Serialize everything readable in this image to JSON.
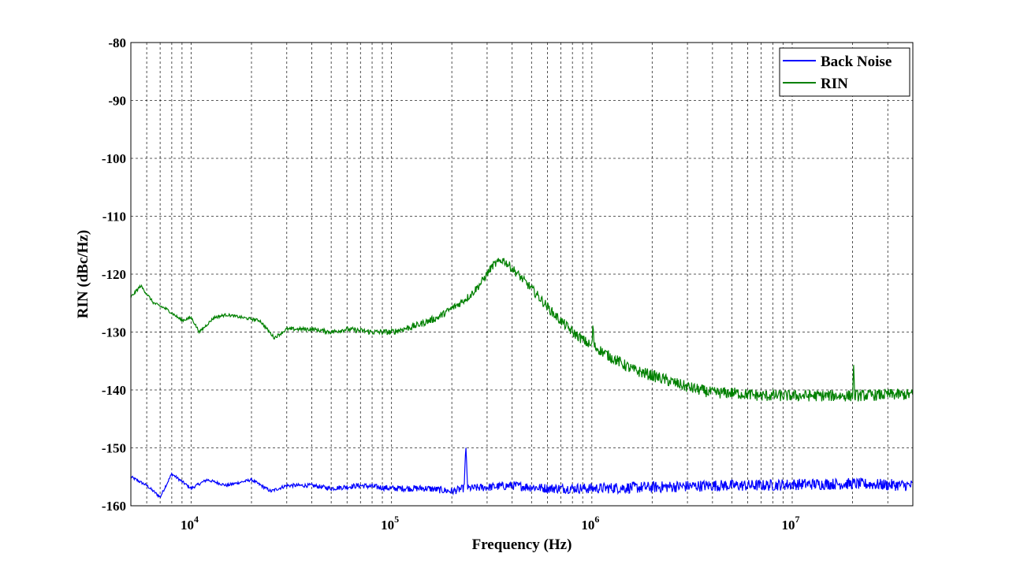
{
  "chart_data": {
    "type": "line",
    "title": "",
    "xlabel": "Frequency (Hz)",
    "ylabel": "RIN (dBc/Hz)",
    "xscale": "log",
    "xlim": [
      5000,
      40000000
    ],
    "ylim": [
      -160,
      -80
    ],
    "grid": true,
    "legend": "top-right",
    "y_ticks": [
      -80,
      -90,
      -100,
      -110,
      -120,
      -130,
      -140,
      -150,
      -160
    ],
    "x_ticks": [
      {
        "value": 10000,
        "base": "10",
        "exp": "4"
      },
      {
        "value": 100000,
        "base": "10",
        "exp": "5"
      },
      {
        "value": 1000000,
        "base": "10",
        "exp": "6"
      },
      {
        "value": 10000000,
        "base": "10",
        "exp": "7"
      }
    ],
    "series": [
      {
        "name": "Back Noise",
        "color": "#0000ff",
        "x": [
          5000,
          6000,
          7000,
          8000,
          10000,
          12000,
          15000,
          20000,
          25000,
          30000,
          40000,
          50000,
          70000,
          100000,
          150000,
          200000,
          230000,
          235000,
          240000,
          300000,
          400000,
          600000,
          1000000,
          2000000,
          4000000,
          7000000,
          10000000,
          20000000,
          40000000
        ],
        "y": [
          -155,
          -156.5,
          -158.5,
          -154.5,
          -157,
          -155.5,
          -156.5,
          -155.5,
          -157.5,
          -156.5,
          -156.5,
          -157,
          -156.5,
          -157,
          -157,
          -157.5,
          -157,
          -150,
          -157,
          -156.8,
          -156.5,
          -157,
          -157,
          -156.8,
          -156.5,
          -156.5,
          -156.3,
          -156.2,
          -156.5
        ],
        "noise": 1.0
      },
      {
        "name": "RIN",
        "color": "#008000",
        "x": [
          5000,
          5600,
          6500,
          7500,
          9000,
          10000,
          11000,
          13000,
          15000,
          18000,
          22000,
          26000,
          30000,
          40000,
          50000,
          60000,
          80000,
          100000,
          130000,
          170000,
          220000,
          250000,
          280000,
          320000,
          360000,
          400000,
          500000,
          650000,
          800000,
          1000000,
          1010000,
          1030000,
          1200000,
          1600000,
          2000000,
          3000000,
          4000000,
          5000000,
          7000000,
          10000000,
          15000000,
          20000000,
          20200000,
          20500000,
          30000000,
          40000000
        ],
        "y": [
          -124,
          -122,
          -125,
          -126,
          -128,
          -127.5,
          -130,
          -127.5,
          -127,
          -127.5,
          -128,
          -131,
          -129.5,
          -129.5,
          -130,
          -129.5,
          -130,
          -130,
          -129,
          -127.5,
          -125,
          -123.5,
          -121.5,
          -118.5,
          -117.5,
          -119,
          -122.5,
          -127,
          -130,
          -132.5,
          -129,
          -132.5,
          -134,
          -136.5,
          -137.5,
          -139.5,
          -140.5,
          -140.5,
          -141,
          -141,
          -141,
          -141,
          -135.5,
          -141,
          -140.8,
          -140.8
        ],
        "noise": 1.0
      }
    ]
  }
}
